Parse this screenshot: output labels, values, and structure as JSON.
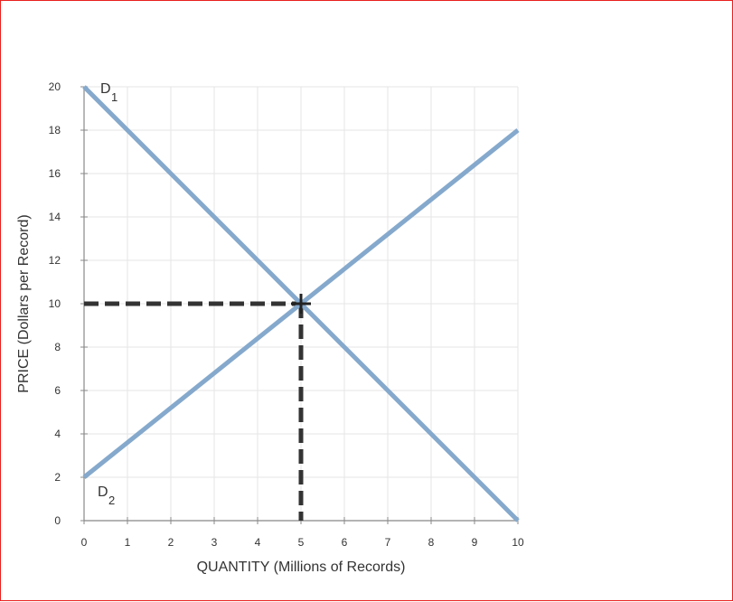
{
  "chart_data": {
    "type": "line",
    "xlabel": "QUANTITY (Millions of Records)",
    "ylabel": "PRICE (Dollars per Record)",
    "xlim": [
      0,
      10
    ],
    "ylim": [
      0,
      20
    ],
    "xticks": [
      0,
      1,
      2,
      3,
      4,
      5,
      6,
      7,
      8,
      9,
      10
    ],
    "yticks": [
      0,
      2,
      4,
      6,
      8,
      10,
      12,
      14,
      16,
      18,
      20
    ],
    "grid": true,
    "line_color": "#85a9cc",
    "guide_color": "#333333",
    "series": [
      {
        "name": "D1",
        "label_main": "D",
        "label_sub": "1",
        "x": [
          0,
          10
        ],
        "y": [
          20,
          0
        ]
      },
      {
        "name": "D2",
        "label_main": "D",
        "label_sub": "2",
        "x": [
          0,
          10
        ],
        "y": [
          2,
          18
        ]
      }
    ],
    "equilibrium": {
      "x": 5,
      "y": 10
    }
  }
}
